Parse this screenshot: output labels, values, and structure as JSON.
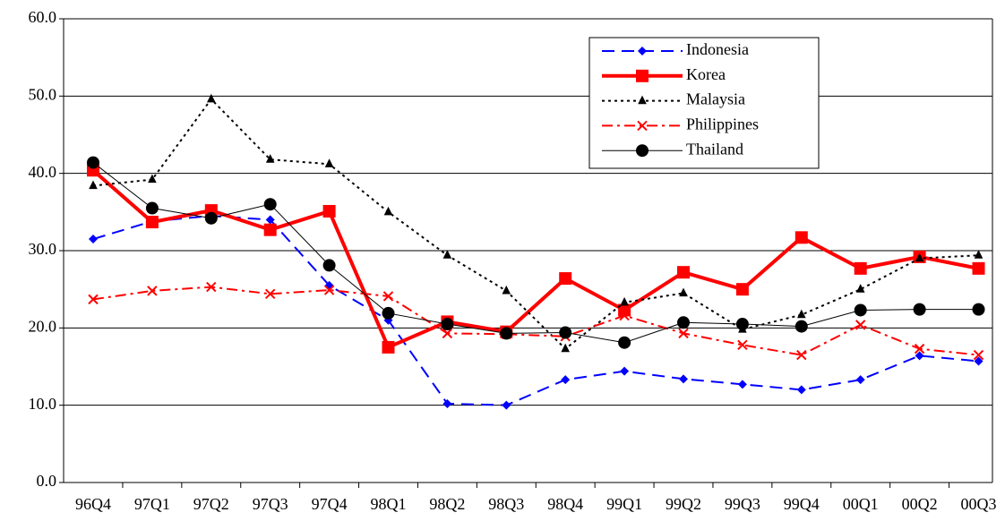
{
  "chart_data": {
    "type": "line",
    "categories": [
      "96Q4",
      "97Q1",
      "97Q2",
      "97Q3",
      "97Q4",
      "98Q1",
      "98Q2",
      "98Q3",
      "98Q4",
      "99Q1",
      "99Q2",
      "99Q3",
      "99Q4",
      "00Q1",
      "00Q2",
      "00Q3"
    ],
    "series": [
      {
        "name": "Indonesia",
        "color": "#0000ff",
        "values": [
          31.5,
          33.8,
          34.5,
          34.0,
          25.5,
          21.0,
          10.2,
          10.0,
          13.3,
          14.4,
          13.4,
          12.7,
          12.0,
          13.3,
          16.4,
          15.7
        ]
      },
      {
        "name": "Korea",
        "color": "#ff0000",
        "values": [
          40.4,
          33.7,
          35.2,
          32.7,
          35.1,
          17.5,
          20.8,
          19.5,
          26.4,
          22.3,
          27.2,
          25.0,
          31.7,
          27.7,
          29.2,
          27.7
        ]
      },
      {
        "name": "Malaysia",
        "color": "#000000",
        "values": [
          38.4,
          39.2,
          49.6,
          41.8,
          41.2,
          35.0,
          29.4,
          24.8,
          17.3,
          23.3,
          24.5,
          19.8,
          21.7,
          25.0,
          29.0,
          29.4
        ]
      },
      {
        "name": "Philippines",
        "color": "#ff0000",
        "values": [
          23.7,
          24.8,
          25.3,
          24.4,
          24.9,
          24.1,
          19.3,
          19.2,
          18.9,
          21.6,
          19.3,
          17.8,
          16.5,
          20.4,
          17.3,
          16.5
        ]
      },
      {
        "name": "Thailand",
        "color": "#000000",
        "values": [
          41.4,
          35.5,
          34.2,
          36.0,
          28.1,
          21.9,
          20.5,
          19.3,
          19.4,
          18.1,
          20.7,
          20.5,
          20.2,
          22.3,
          22.4,
          22.4
        ]
      }
    ],
    "ylim": [
      0,
      60
    ],
    "yticks": [
      {
        "value": 0,
        "label": "0.0"
      },
      {
        "value": 10,
        "label": "10.0"
      },
      {
        "value": 20,
        "label": "20.0"
      },
      {
        "value": 30,
        "label": "30.0"
      },
      {
        "value": 40,
        "label": "40.0"
      },
      {
        "value": 50,
        "label": "50.0"
      },
      {
        "value": 60,
        "label": "60.0"
      }
    ],
    "grid": true,
    "legend": "top-right"
  }
}
